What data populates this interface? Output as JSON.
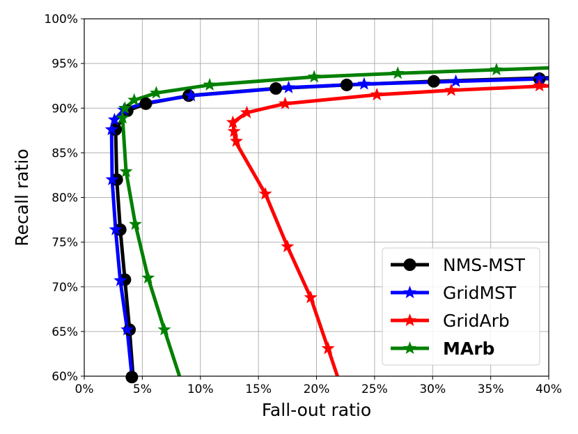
{
  "chart_data": {
    "type": "line",
    "xlabel": "Fall-out ratio",
    "ylabel": "Recall ratio",
    "xlim": [
      0,
      40
    ],
    "ylim": [
      60,
      100
    ],
    "x_ticks": [
      "0%",
      "5%",
      "10%",
      "15%",
      "20%",
      "25%",
      "30%",
      "35%",
      "40%"
    ],
    "y_ticks": [
      "60%",
      "65%",
      "70%",
      "75%",
      "80%",
      "85%",
      "90%",
      "95%",
      "100%"
    ],
    "grid": true,
    "legend_position": "bottom-right",
    "series": [
      {
        "name": "NMS-MST",
        "color": "#000000",
        "marker": "circle",
        "bold": false,
        "line": [
          [
            4.2,
            60
          ],
          [
            3.9,
            65.2
          ],
          [
            3.5,
            70.8
          ],
          [
            3.1,
            76.4
          ],
          [
            2.8,
            82
          ],
          [
            2.7,
            87.6
          ],
          [
            3.7,
            89.7
          ],
          [
            5.3,
            90.5
          ],
          [
            9.0,
            91.4
          ],
          [
            16.5,
            92.2
          ],
          [
            22.6,
            92.6
          ],
          [
            30.0,
            93.0
          ],
          [
            40.0,
            93.4
          ]
        ],
        "markers": [
          [
            4.1,
            59.9
          ],
          [
            3.9,
            65.2
          ],
          [
            3.5,
            70.8
          ],
          [
            3.1,
            76.4
          ],
          [
            2.8,
            82.0
          ],
          [
            2.7,
            87.6
          ],
          [
            3.7,
            89.7
          ],
          [
            5.3,
            90.5
          ],
          [
            9.0,
            91.4
          ],
          [
            16.5,
            92.2
          ],
          [
            22.6,
            92.6
          ],
          [
            30.1,
            93.0
          ],
          [
            39.2,
            93.3
          ]
        ]
      },
      {
        "name": "GridMST",
        "color": "#0000ff",
        "marker": "star",
        "bold": false,
        "line": [
          [
            4.1,
            60
          ],
          [
            3.7,
            65.2
          ],
          [
            3.1,
            70.7
          ],
          [
            2.7,
            76.4
          ],
          [
            2.4,
            82
          ],
          [
            2.35,
            87.6
          ],
          [
            2.6,
            88.7
          ],
          [
            3.4,
            89.8
          ],
          [
            5.0,
            90.5
          ],
          [
            9.2,
            91.4
          ],
          [
            17.6,
            92.3
          ],
          [
            24.1,
            92.7
          ],
          [
            32.0,
            93.0
          ],
          [
            40.0,
            93.3
          ]
        ],
        "markers": [
          [
            3.7,
            65.2
          ],
          [
            3.1,
            70.7
          ],
          [
            2.7,
            76.4
          ],
          [
            2.4,
            82.0
          ],
          [
            2.35,
            87.6
          ],
          [
            2.6,
            88.7
          ],
          [
            3.4,
            89.8
          ],
          [
            9.2,
            91.4
          ],
          [
            17.6,
            92.3
          ],
          [
            24.1,
            92.7
          ],
          [
            32.0,
            93.0
          ],
          [
            39.2,
            93.3
          ]
        ]
      },
      {
        "name": "GridArb",
        "color": "#ff0000",
        "marker": "star",
        "bold": false,
        "line": [
          [
            21.8,
            60
          ],
          [
            21.0,
            63.1
          ],
          [
            19.5,
            68.8
          ],
          [
            17.5,
            74.5
          ],
          [
            15.6,
            80.4
          ],
          [
            13.0,
            86.3
          ],
          [
            12.9,
            87.4
          ],
          [
            12.8,
            88.4
          ],
          [
            14.0,
            89.5
          ],
          [
            17.3,
            90.5
          ],
          [
            25.2,
            91.5
          ],
          [
            31.6,
            92.0
          ],
          [
            40.0,
            92.5
          ]
        ],
        "markers": [
          [
            21.0,
            63.1
          ],
          [
            19.5,
            68.8
          ],
          [
            17.5,
            74.5
          ],
          [
            15.6,
            80.4
          ],
          [
            13.1,
            86.3
          ],
          [
            12.9,
            87.4
          ],
          [
            12.8,
            88.4
          ],
          [
            14.0,
            89.5
          ],
          [
            17.3,
            90.5
          ],
          [
            25.2,
            91.5
          ],
          [
            31.6,
            92.0
          ],
          [
            39.2,
            92.5
          ]
        ]
      },
      {
        "name": "MArb",
        "color": "#008000",
        "marker": "star",
        "bold": true,
        "line": [
          [
            8.2,
            60
          ],
          [
            6.9,
            65.2
          ],
          [
            5.5,
            71.0
          ],
          [
            4.4,
            77.0
          ],
          [
            3.6,
            82.9
          ],
          [
            3.3,
            88.9
          ],
          [
            3.5,
            90.0
          ],
          [
            4.3,
            90.9
          ],
          [
            6.2,
            91.7
          ],
          [
            10.8,
            92.6
          ],
          [
            19.8,
            93.5
          ],
          [
            27.0,
            93.9
          ],
          [
            35.5,
            94.3
          ],
          [
            40.0,
            94.5
          ]
        ],
        "markers": [
          [
            6.9,
            65.2
          ],
          [
            5.5,
            71.0
          ],
          [
            4.4,
            77.0
          ],
          [
            3.6,
            82.9
          ],
          [
            3.3,
            88.9
          ],
          [
            3.5,
            90.0
          ],
          [
            4.3,
            90.9
          ],
          [
            6.2,
            91.7
          ],
          [
            10.8,
            92.6
          ],
          [
            19.8,
            93.5
          ],
          [
            27.0,
            93.9
          ],
          [
            35.5,
            94.3
          ]
        ]
      }
    ]
  }
}
